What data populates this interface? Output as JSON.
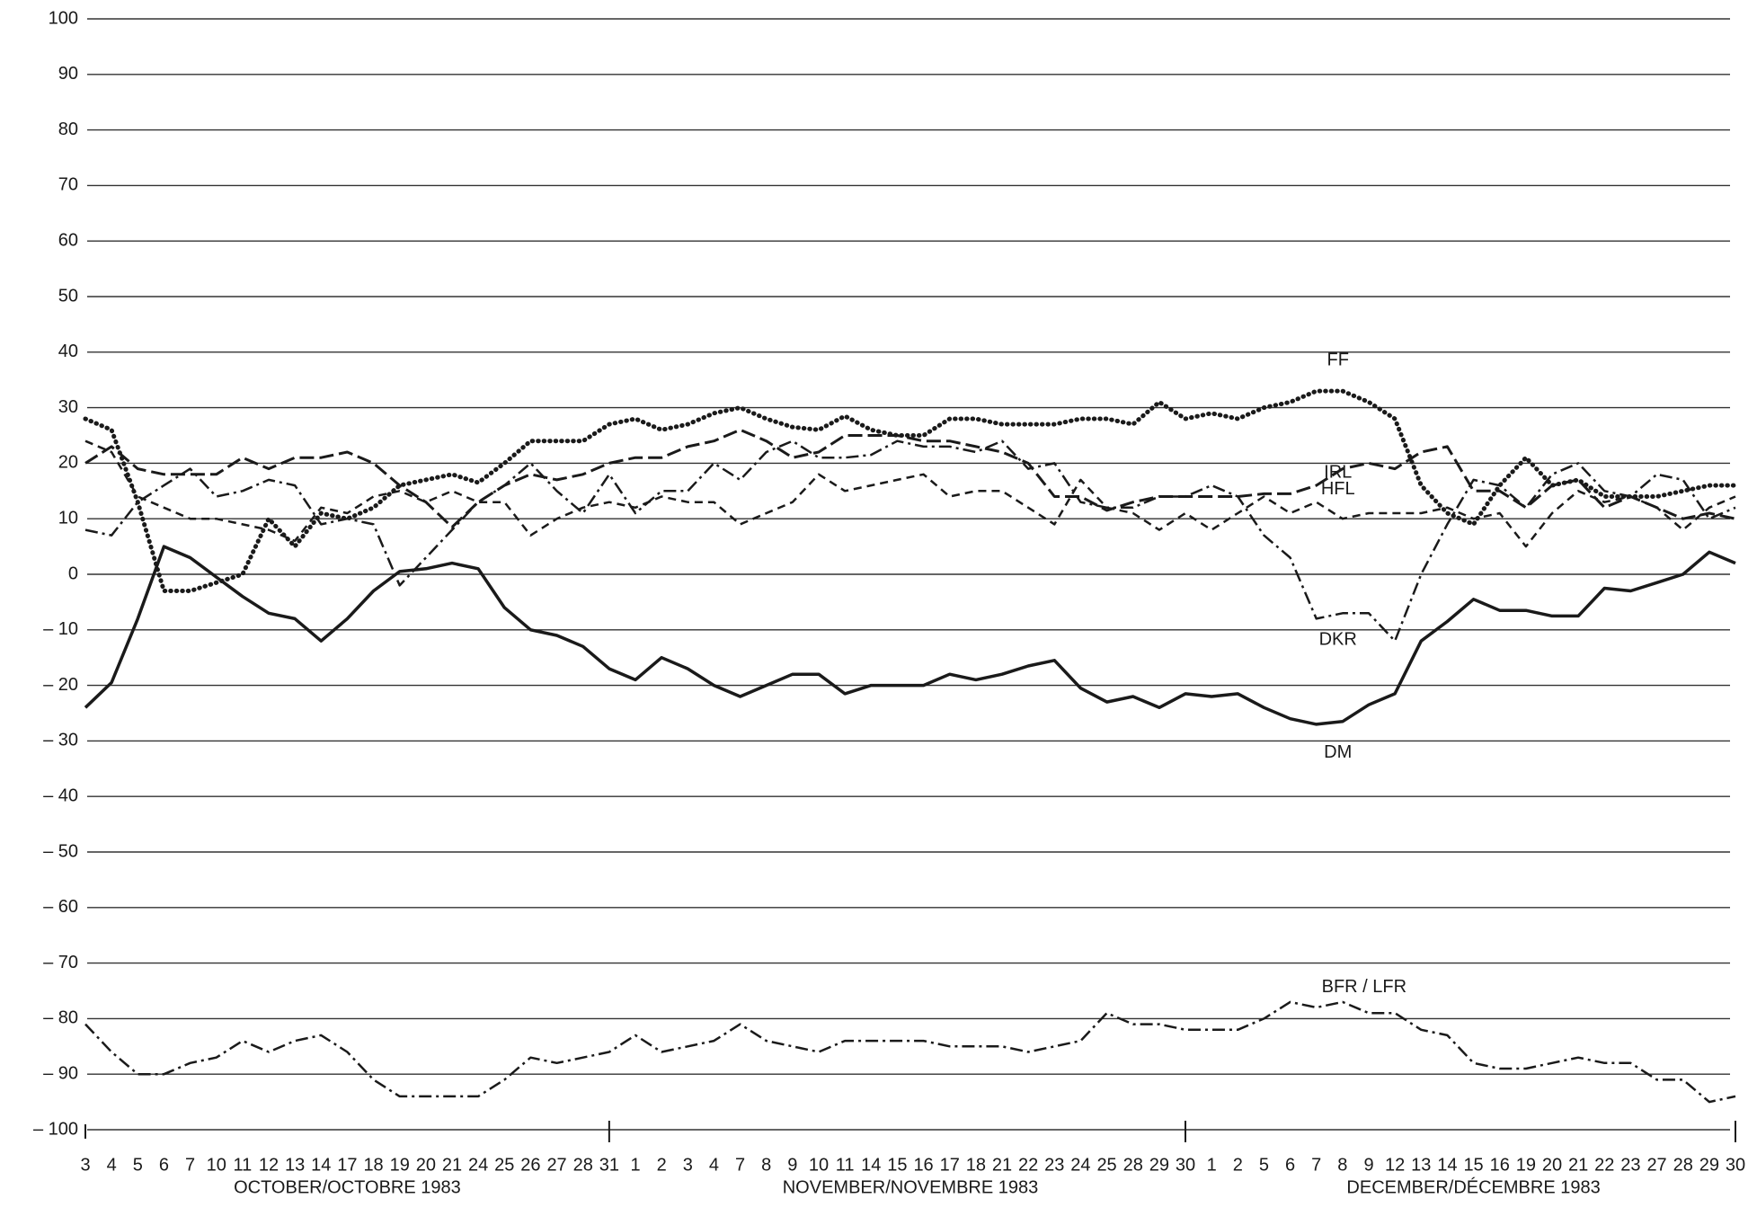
{
  "chart_data": {
    "type": "line",
    "categories": [
      "3",
      "4",
      "5",
      "6",
      "7",
      "10",
      "11",
      "12",
      "13",
      "14",
      "17",
      "18",
      "19",
      "20",
      "21",
      "24",
      "25",
      "26",
      "27",
      "28",
      "31",
      "1",
      "2",
      "3",
      "4",
      "7",
      "8",
      "9",
      "10",
      "11",
      "14",
      "15",
      "16",
      "17",
      "18",
      "21",
      "22",
      "23",
      "24",
      "25",
      "28",
      "29",
      "30",
      "1",
      "2",
      "5",
      "6",
      "7",
      "8",
      "9",
      "12",
      "13",
      "14",
      "15",
      "16",
      "19",
      "20",
      "21",
      "22",
      "23",
      "27",
      "28",
      "29",
      "30"
    ],
    "months": [
      "OCTOBER/OCTOBRE 1983",
      "NOVEMBER/NOVEMBRE 1983",
      "DECEMBER/DÉCEMBRE 1983"
    ],
    "ylim": [
      -100,
      100
    ],
    "yticks": [
      100,
      90,
      80,
      70,
      60,
      50,
      40,
      30,
      20,
      10,
      0,
      {
        "value": -10,
        "label": "– 10"
      },
      {
        "value": -20,
        "label": "– 20"
      },
      {
        "value": -30,
        "label": "– 30"
      },
      {
        "value": -40,
        "label": "– 40"
      },
      {
        "value": -50,
        "label": "– 50"
      },
      {
        "value": -60,
        "label": "– 60"
      },
      {
        "value": -70,
        "label": "– 70"
      },
      {
        "value": -80,
        "label": "– 80"
      },
      {
        "value": -90,
        "label": "– 90"
      },
      {
        "value": -100,
        "label": "– 100"
      }
    ],
    "grid": true,
    "series": [
      {
        "name": "FF",
        "color": "#1a1a1a",
        "style": "dotted",
        "values": [
          28,
          26,
          13,
          -3,
          -3,
          -1.5,
          0,
          10,
          5,
          11,
          10,
          12,
          16,
          17,
          18,
          16.5,
          20,
          24,
          24,
          24,
          27,
          28,
          26,
          27,
          29,
          30,
          28,
          26.5,
          26,
          28.5,
          26,
          25,
          25,
          28,
          28,
          27,
          27,
          27,
          28,
          28,
          27,
          31,
          28,
          29,
          28,
          30,
          31,
          33,
          33,
          31,
          28,
          16,
          11,
          9,
          16,
          21,
          16,
          17,
          14,
          14,
          14,
          15,
          16,
          16
        ]
      },
      {
        "name": "IRL",
        "color": "#1a1a1a",
        "style": "longdash",
        "values": [
          20,
          23,
          19,
          18,
          18,
          18,
          21,
          19,
          21,
          21,
          22,
          20,
          16,
          13,
          8.5,
          13,
          16,
          18,
          17,
          18,
          20,
          21,
          21,
          23,
          24,
          26,
          24,
          21,
          22,
          25,
          25,
          25,
          24,
          24,
          23,
          22,
          20,
          14,
          14,
          11.5,
          13,
          14,
          14,
          14,
          14,
          14.5,
          14.5,
          16,
          19,
          20,
          19,
          22,
          23,
          15,
          15,
          12,
          16,
          17,
          12,
          14,
          12,
          10,
          11,
          10
        ]
      },
      {
        "name": "HFL",
        "color": "#1a1a1a",
        "style": "dashed",
        "values": [
          24,
          22,
          14,
          12,
          10,
          10,
          9,
          8,
          6,
          12,
          11,
          14,
          15,
          13,
          15,
          13,
          13,
          7,
          10,
          12,
          13,
          12,
          14,
          13,
          13,
          9,
          11,
          13,
          18,
          15,
          16,
          17,
          18,
          14,
          15,
          15,
          12,
          9,
          17,
          12,
          11,
          8,
          11,
          8,
          11,
          14,
          11,
          13,
          10,
          11,
          11,
          11,
          12,
          10,
          11,
          5,
          11,
          15,
          13,
          14,
          12,
          8,
          12,
          14
        ]
      },
      {
        "name": "DKR",
        "color": "#1a1a1a",
        "style": "dashdot",
        "values": [
          8,
          7,
          13,
          16,
          19,
          14,
          15,
          17,
          16,
          9,
          10,
          9,
          -2,
          3,
          8,
          13,
          16,
          20,
          15,
          11,
          18,
          11,
          15,
          15,
          20,
          17,
          22,
          24,
          21,
          21,
          21.5,
          24,
          23,
          23,
          22,
          24,
          19,
          20,
          13,
          12,
          12,
          14,
          14,
          16,
          14,
          7,
          3,
          -8,
          -7,
          -7,
          -12,
          0,
          9,
          17,
          16,
          12,
          18,
          20,
          15,
          14,
          18,
          17,
          10,
          12
        ]
      },
      {
        "name": "DM",
        "color": "#1a1a1a",
        "style": "solid",
        "values": [
          -24,
          -19.5,
          -8,
          5,
          3,
          -0.5,
          -4,
          -7,
          -8,
          -12,
          -8,
          -3,
          0.5,
          1,
          2,
          1,
          -6,
          -10,
          -11,
          -13,
          -17,
          -19,
          -15,
          -17,
          -20,
          -22,
          -20,
          -18,
          -18,
          -21.5,
          -20,
          -20,
          -20,
          -18,
          -19,
          -18,
          -16.5,
          -15.5,
          -20.5,
          -23,
          -22,
          -24,
          -21.5,
          -22,
          -21.5,
          -24,
          -26,
          -27,
          -26.5,
          -23.5,
          -21.5,
          -12,
          -8.5,
          -4.5,
          -6.5,
          -6.5,
          -7.5,
          -7.5,
          -2.5,
          -3,
          -1.5,
          0,
          4,
          2
        ]
      },
      {
        "name": "BFR / LFR",
        "color": "#1a1a1a",
        "style": "dashdot",
        "values": [
          -81,
          -86,
          -90,
          -90,
          -88,
          -87,
          -84,
          -86,
          -84,
          -83,
          -86,
          -91,
          -94,
          -94,
          -94,
          -94,
          -91,
          -87,
          -88,
          -87,
          -86,
          -83,
          -86,
          -85,
          -84,
          -81,
          -84,
          -85,
          -86,
          -84,
          -84,
          -84,
          -84,
          -85,
          -85,
          -85,
          -86,
          -85,
          -84,
          -79,
          -81,
          -81,
          -82,
          -82,
          -82,
          -80,
          -77,
          -78,
          -77,
          -79,
          -79,
          -82,
          -83,
          -88,
          -89,
          -89,
          -88,
          -87,
          -88,
          -88,
          -91,
          -91,
          -95,
          -94
        ]
      }
    ]
  }
}
